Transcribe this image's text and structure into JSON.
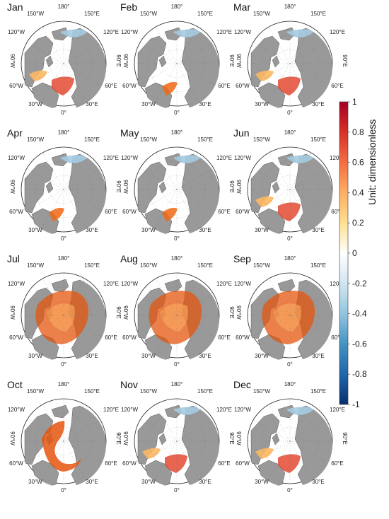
{
  "months": [
    "Jan",
    "Feb",
    "Mar",
    "Apr",
    "May",
    "Jun",
    "Jul",
    "Aug",
    "Sep",
    "Oct",
    "Nov",
    "Dec"
  ],
  "map_labels": {
    "top": "180°",
    "bottom": "0°",
    "upper_left_1": "150°W",
    "upper_left_2": "120°W",
    "left": "90°W",
    "lower_left_1": "60°W",
    "lower_left_2": "30°W",
    "upper_right_1": "150°E",
    "upper_right_2": "120°E",
    "right": "90°E",
    "lower_right_1": "60°E",
    "lower_right_2": "30°E"
  },
  "colorbar": {
    "title": "Unit: dimensionless",
    "ticks": [
      "1",
      "0.8",
      "0.6",
      "0.4",
      "0.2",
      "0",
      "-0.2",
      "-0.4",
      "-0.6",
      "-0.8",
      "-1"
    ],
    "range": [
      -1,
      1
    ],
    "colors": [
      "#08306b",
      "#2166ac",
      "#4393c3",
      "#92c5de",
      "#d1e5f0",
      "#ffffff",
      "#fee090",
      "#fdae61",
      "#f46d43",
      "#d73027",
      "#a50026"
    ]
  },
  "patterns": {
    "Jan": "winter",
    "Feb": "blue",
    "Mar": "winter",
    "Apr": "blue",
    "May": "blue",
    "Jun": "winter",
    "Jul": "summer",
    "Aug": "summer",
    "Sep": "summer",
    "Oct": "autumn",
    "Nov": "winter",
    "Dec": "winter"
  }
}
